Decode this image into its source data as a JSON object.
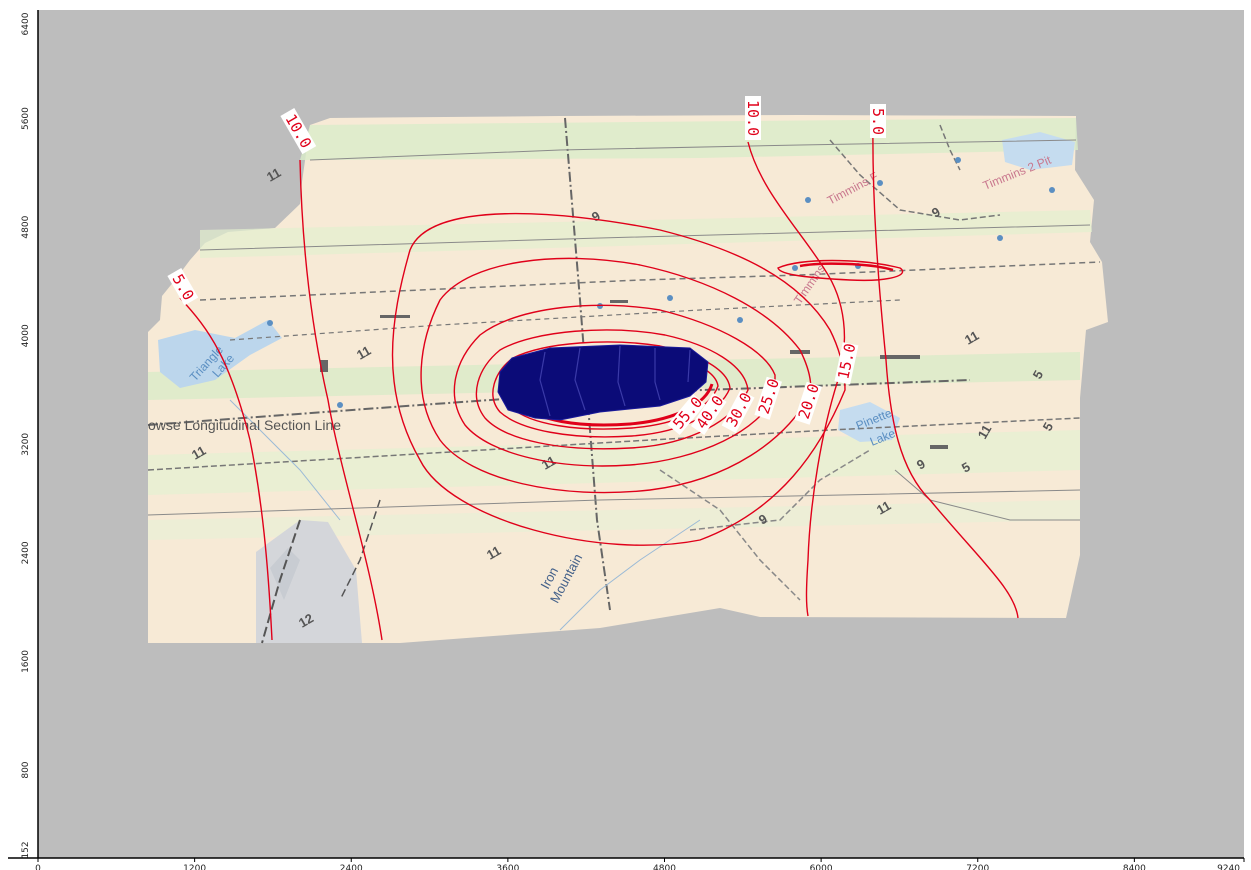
{
  "chart_data": {
    "type": "contour",
    "xlim": [
      0,
      9240
    ],
    "ylim": [
      152,
      6400
    ],
    "x_ticks": [
      "0",
      "1200",
      "2400",
      "3600",
      "4800",
      "6000",
      "7200",
      "8400",
      "9240"
    ],
    "y_ticks": [
      "6400",
      "5600",
      "4800",
      "4000",
      "3200",
      "2400",
      "1600",
      "800",
      "152"
    ],
    "contour_levels": [
      "5.0",
      "10.0",
      "15.0",
      "20.0",
      "25.0",
      "30.0",
      "40.0",
      "55.0"
    ],
    "colors": {
      "background": "#bdbdbd",
      "contour": "#e0001a",
      "pit": "#0b0b78",
      "map_base": "#f7ead6",
      "water": "#bcd6ec",
      "green_band": "#d9ecc9"
    }
  },
  "map_labels": {
    "section_line": "owse Longitudinal Section Line",
    "iron_mountain": [
      "Iron",
      "Mountain"
    ],
    "triangle_lake": [
      "Triangle",
      "Lake"
    ],
    "pinette": "Pinette",
    "pinette_lake": "Lake",
    "timmins_1": "Timmins F",
    "timmins_2": "Timmins 2 Pit",
    "timmins_3": "Timmins",
    "units": [
      "11",
      "11",
      "11",
      "11",
      "11",
      "11",
      "11",
      "11",
      "9",
      "9",
      "9",
      "9",
      "5",
      "5",
      "5",
      "12"
    ]
  }
}
